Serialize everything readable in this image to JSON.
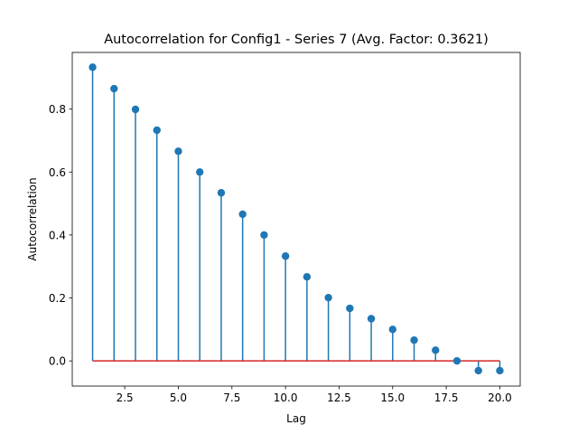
{
  "chart_data": {
    "type": "stem",
    "title": "Autocorrelation for Config1 - Series 7 (Avg. Factor: 0.3621)",
    "xlabel": "Lag",
    "ylabel": "Autocorrelation",
    "xlim": [
      0.05,
      20.95
    ],
    "ylim": [
      -0.08,
      0.98
    ],
    "xticks": [
      2.5,
      5.0,
      7.5,
      10.0,
      12.5,
      15.0,
      17.5,
      20.0
    ],
    "xtick_labels": [
      "2.5",
      "5.0",
      "7.5",
      "10.0",
      "12.5",
      "15.0",
      "17.5",
      "20.0"
    ],
    "yticks": [
      0.0,
      0.2,
      0.4,
      0.6,
      0.8
    ],
    "ytick_labels": [
      "0.0",
      "0.2",
      "0.4",
      "0.6",
      "0.8"
    ],
    "grid": false,
    "baseline": 0.0,
    "x": [
      1,
      2,
      3,
      4,
      5,
      6,
      7,
      8,
      9,
      10,
      11,
      12,
      13,
      14,
      15,
      16,
      17,
      18,
      19,
      20
    ],
    "values": [
      0.933,
      0.865,
      0.799,
      0.733,
      0.666,
      0.6,
      0.534,
      0.466,
      0.4,
      0.333,
      0.267,
      0.201,
      0.167,
      0.134,
      0.1,
      0.066,
      0.034,
      0.0,
      -0.031,
      -0.031
    ],
    "colors": {
      "stem": "#1f77b4",
      "marker": "#1f77b4",
      "baseline": "#d62728",
      "axes": "#000000"
    }
  }
}
